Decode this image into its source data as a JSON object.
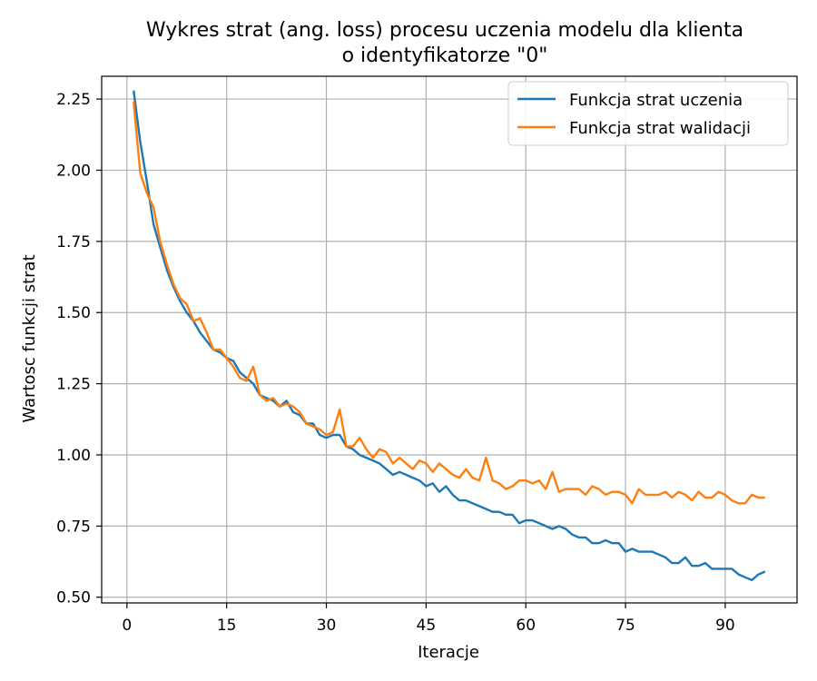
{
  "chart_data": {
    "type": "line",
    "title": [
      "Wykres strat (ang. loss) procesu uczenia modelu dla klienta",
      "o identyfikatorze \"0\""
    ],
    "xlabel": "Iteracje",
    "ylabel": "Wartosc funkcji strat",
    "xlim": [
      -3.8,
      100.8
    ],
    "ylim": [
      0.48,
      2.33
    ],
    "xticks": [
      0,
      15,
      30,
      45,
      60,
      75,
      90
    ],
    "yticks": [
      0.5,
      0.75,
      1.0,
      1.25,
      1.5,
      1.75,
      2.0,
      2.25
    ],
    "ytick_labels": [
      "0.50",
      "0.75",
      "1.00",
      "1.25",
      "1.50",
      "1.75",
      "2.00",
      "2.25"
    ],
    "grid": true,
    "legend": "top-right",
    "x": [
      1,
      2,
      3,
      4,
      5,
      6,
      7,
      8,
      9,
      10,
      11,
      12,
      13,
      14,
      15,
      16,
      17,
      18,
      19,
      20,
      21,
      22,
      23,
      24,
      25,
      26,
      27,
      28,
      29,
      30,
      31,
      32,
      33,
      34,
      35,
      36,
      37,
      38,
      39,
      40,
      41,
      42,
      43,
      44,
      45,
      46,
      47,
      48,
      49,
      50,
      51,
      52,
      53,
      54,
      55,
      56,
      57,
      58,
      59,
      60,
      61,
      62,
      63,
      64,
      65,
      66,
      67,
      68,
      69,
      70,
      71,
      72,
      73,
      74,
      75,
      76,
      77,
      78,
      79,
      80,
      81,
      82,
      83,
      84,
      85,
      86,
      87,
      88,
      89,
      90,
      91,
      92,
      93,
      94,
      95,
      96
    ],
    "series": [
      {
        "name": "Funkcja strat uczenia",
        "color": "#1f77b4",
        "values": [
          2.28,
          2.1,
          1.96,
          1.81,
          1.73,
          1.65,
          1.59,
          1.54,
          1.5,
          1.47,
          1.43,
          1.4,
          1.37,
          1.36,
          1.34,
          1.33,
          1.29,
          1.27,
          1.25,
          1.21,
          1.2,
          1.19,
          1.17,
          1.19,
          1.15,
          1.14,
          1.11,
          1.11,
          1.07,
          1.06,
          1.07,
          1.07,
          1.03,
          1.02,
          1.0,
          0.99,
          0.98,
          0.97,
          0.95,
          0.93,
          0.94,
          0.93,
          0.92,
          0.91,
          0.89,
          0.9,
          0.87,
          0.89,
          0.86,
          0.84,
          0.84,
          0.83,
          0.82,
          0.81,
          0.8,
          0.8,
          0.79,
          0.79,
          0.76,
          0.77,
          0.77,
          0.76,
          0.75,
          0.74,
          0.75,
          0.74,
          0.72,
          0.71,
          0.71,
          0.69,
          0.69,
          0.7,
          0.69,
          0.69,
          0.66,
          0.67,
          0.66,
          0.66,
          0.66,
          0.65,
          0.64,
          0.62,
          0.62,
          0.64,
          0.61,
          0.61,
          0.62,
          0.6,
          0.6,
          0.6,
          0.6,
          0.58,
          0.57,
          0.56,
          0.58,
          0.59
        ]
      },
      {
        "name": "Funkcja strat walidacji",
        "color": "#ff7f0e",
        "values": [
          2.24,
          1.99,
          1.92,
          1.87,
          1.75,
          1.67,
          1.6,
          1.55,
          1.53,
          1.47,
          1.48,
          1.43,
          1.37,
          1.37,
          1.34,
          1.31,
          1.27,
          1.26,
          1.31,
          1.21,
          1.19,
          1.2,
          1.17,
          1.18,
          1.17,
          1.15,
          1.11,
          1.1,
          1.09,
          1.07,
          1.08,
          1.16,
          1.03,
          1.03,
          1.06,
          1.02,
          0.99,
          1.02,
          1.01,
          0.97,
          0.99,
          0.97,
          0.95,
          0.98,
          0.97,
          0.94,
          0.97,
          0.95,
          0.93,
          0.92,
          0.95,
          0.92,
          0.91,
          0.99,
          0.91,
          0.9,
          0.88,
          0.89,
          0.91,
          0.91,
          0.9,
          0.91,
          0.88,
          0.94,
          0.87,
          0.88,
          0.88,
          0.88,
          0.86,
          0.89,
          0.88,
          0.86,
          0.87,
          0.87,
          0.86,
          0.83,
          0.88,
          0.86,
          0.86,
          0.86,
          0.87,
          0.85,
          0.87,
          0.86,
          0.84,
          0.87,
          0.85,
          0.85,
          0.87,
          0.86,
          0.84,
          0.83,
          0.83,
          0.86,
          0.85,
          0.85
        ]
      }
    ]
  }
}
